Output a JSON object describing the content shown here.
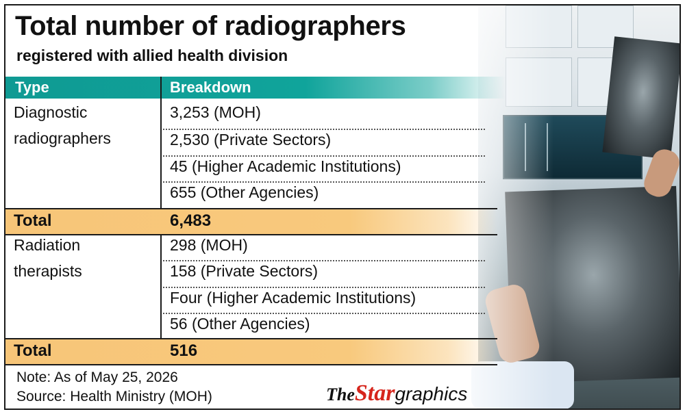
{
  "title": "Total number of radiographers",
  "subtitle": "registered with allied health division",
  "headers": {
    "type": "Type",
    "breakdown": "Breakdown"
  },
  "chart_data": {
    "type": "table",
    "columns": [
      "Type",
      "Breakdown"
    ],
    "groups": [
      {
        "type_line1": "Diagnostic",
        "type_line2": "radiographers",
        "rows": [
          "3,253 (MOH)",
          "2,530 (Private Sectors)",
          "45 (Higher Academic Institutions)",
          "655 (Other Agencies)"
        ],
        "total_label": "Total",
        "total_value": "6,483"
      },
      {
        "type_line1": "Radiation",
        "type_line2": "therapists",
        "rows": [
          "298 (MOH)",
          "158 (Private Sectors)",
          "Four (Higher Academic Institutions)",
          "56 (Other Agencies)"
        ],
        "total_label": "Total",
        "total_value": "516"
      }
    ]
  },
  "note": "Note: As of May 25, 2026",
  "source": "Source: Health Ministry (MOH)",
  "logo": {
    "the": "The",
    "star": "Star",
    "graphics": "graphics"
  },
  "colors": {
    "header_teal": "#10a49b",
    "total_orange": "#f8c97d",
    "logo_red": "#d6251c"
  },
  "photo": {
    "icon": "xray-photo"
  }
}
